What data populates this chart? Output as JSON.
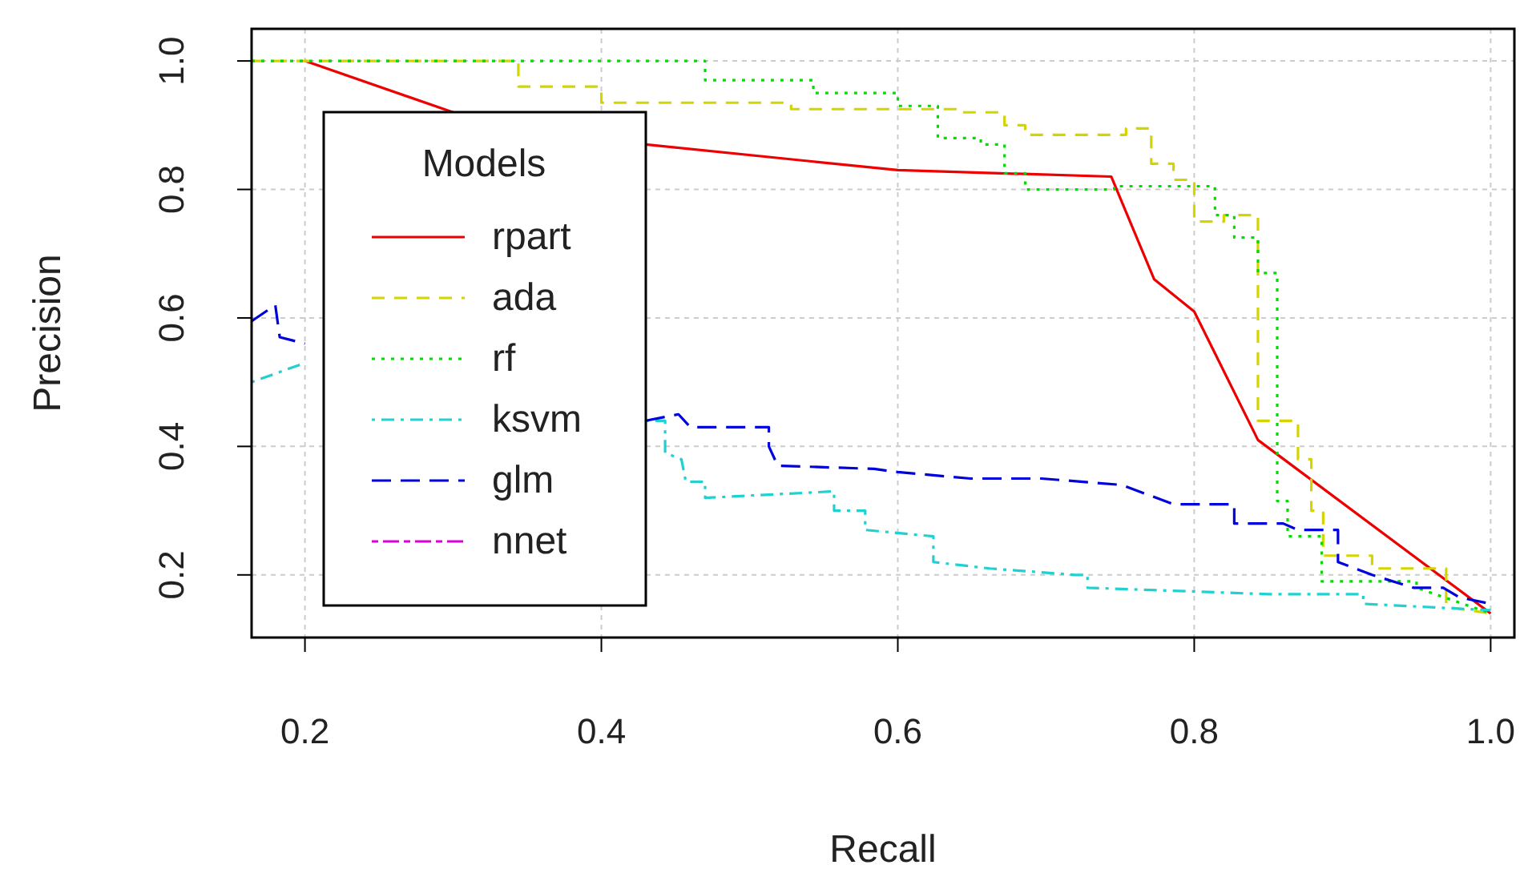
{
  "chart_data": {
    "type": "line",
    "xlabel": "Recall",
    "ylabel": "Precision",
    "legend_title": "Models",
    "legend": "left",
    "grid": true,
    "xlim": [
      0.164,
      1.016
    ],
    "ylim": [
      0.1025,
      1.05
    ],
    "xticks": [
      {
        "value": 0.2,
        "label": "0.2"
      },
      {
        "value": 0.4,
        "label": "0.4"
      },
      {
        "value": 0.6,
        "label": "0.6"
      },
      {
        "value": 0.8,
        "label": "0.8"
      },
      {
        "value": 1.0,
        "label": "1.0"
      }
    ],
    "yticks": [
      {
        "value": 0.2,
        "label": "0.2"
      },
      {
        "value": 0.4,
        "label": "0.4"
      },
      {
        "value": 0.6,
        "label": "0.6"
      },
      {
        "value": 0.8,
        "label": "0.8"
      },
      {
        "value": 1.0,
        "label": "1.0"
      }
    ],
    "series": [
      {
        "name": "rpart",
        "color": "#ee0000",
        "line_style": "solid",
        "x": [
          0.2,
          0.3,
          0.36,
          0.43,
          0.6,
          0.744,
          0.773,
          0.8,
          0.843,
          1.0
        ],
        "values": [
          1.0,
          0.92,
          null,
          0.87,
          0.83,
          0.82,
          0.66,
          0.61,
          0.41,
          0.14
        ]
      },
      {
        "name": "ada",
        "color": "#d4d400",
        "line_style": "dashed",
        "x": [
          0.164,
          0.344,
          0.344,
          0.4,
          0.4,
          0.528,
          0.528,
          0.641,
          0.641,
          0.672,
          0.672,
          0.686,
          0.686,
          0.754,
          0.754,
          0.771,
          0.771,
          0.786,
          0.786,
          0.8,
          0.8,
          0.82,
          0.82,
          0.843,
          0.843,
          0.87,
          0.87,
          0.879,
          0.879,
          0.887,
          0.887,
          0.92,
          0.92,
          0.97,
          0.97,
          1.0
        ],
        "values": [
          1,
          1,
          0.96,
          0.96,
          0.935,
          0.935,
          0.925,
          0.925,
          0.92,
          0.92,
          0.9,
          0.9,
          0.885,
          0.885,
          0.895,
          0.895,
          0.84,
          0.84,
          0.815,
          0.815,
          0.75,
          0.75,
          0.76,
          0.76,
          0.44,
          0.44,
          0.38,
          0.38,
          0.3,
          0.3,
          0.23,
          0.23,
          0.21,
          0.21,
          0.15,
          0.14
        ]
      },
      {
        "name": "rf",
        "color": "#00dd00",
        "line_style": "dotted",
        "x": [
          0.164,
          0.47,
          0.47,
          0.543,
          0.543,
          0.6,
          0.6,
          0.627,
          0.627,
          0.656,
          0.656,
          0.672,
          0.672,
          0.686,
          0.686,
          0.746,
          0.746,
          0.814,
          0.814,
          0.827,
          0.827,
          0.843,
          0.843,
          0.856,
          0.856,
          0.863,
          0.863,
          0.886,
          0.886,
          0.95,
          0.95,
          1.0
        ],
        "values": [
          1,
          1,
          0.97,
          0.97,
          0.95,
          0.95,
          0.93,
          0.93,
          0.88,
          0.88,
          0.87,
          0.87,
          0.825,
          0.825,
          0.8,
          0.8,
          0.805,
          0.805,
          0.76,
          0.76,
          0.725,
          0.725,
          0.67,
          0.67,
          0.315,
          0.315,
          0.26,
          0.26,
          0.19,
          0.19,
          0.18,
          0.14
        ]
      },
      {
        "name": "ksvm",
        "color": "#22d0d0",
        "line_style": "dashdot",
        "x": [
          0.164,
          0.2,
          0.3,
          0.43,
          0.443,
          0.443,
          0.454,
          0.457,
          0.47,
          0.47,
          0.557,
          0.557,
          0.578,
          0.578,
          0.624,
          0.624,
          0.662,
          0.72,
          0.728,
          0.728,
          0.85,
          0.914,
          0.914,
          1.0
        ],
        "values": [
          0.5,
          0.53,
          null,
          0.44,
          0.44,
          0.39,
          0.38,
          0.345,
          0.345,
          0.32,
          0.33,
          0.3,
          0.3,
          0.27,
          0.26,
          0.22,
          0.21,
          0.2,
          0.2,
          0.18,
          0.17,
          0.17,
          0.155,
          0.145
        ]
      },
      {
        "name": "glm",
        "color": "#0000dd",
        "line_style": "longdash",
        "x": [
          0.164,
          0.18,
          0.183,
          0.2,
          0.3,
          0.43,
          0.452,
          0.46,
          0.513,
          0.513,
          0.519,
          0.584,
          0.6,
          0.649,
          0.697,
          0.751,
          0.786,
          0.827,
          0.827,
          0.86,
          0.87,
          0.897,
          0.897,
          0.92,
          0.948,
          0.968,
          0.979,
          1.0
        ],
        "values": [
          0.595,
          0.62,
          0.57,
          0.56,
          null,
          0.44,
          0.45,
          0.43,
          0.43,
          0.4,
          0.37,
          0.365,
          0.36,
          0.35,
          0.35,
          0.34,
          0.31,
          0.31,
          0.28,
          0.28,
          0.27,
          0.27,
          0.22,
          0.2,
          0.18,
          0.18,
          0.165,
          0.155
        ]
      },
      {
        "name": "nnet",
        "color": "#dd00dd",
        "line_style": "twodash"
      }
    ]
  }
}
